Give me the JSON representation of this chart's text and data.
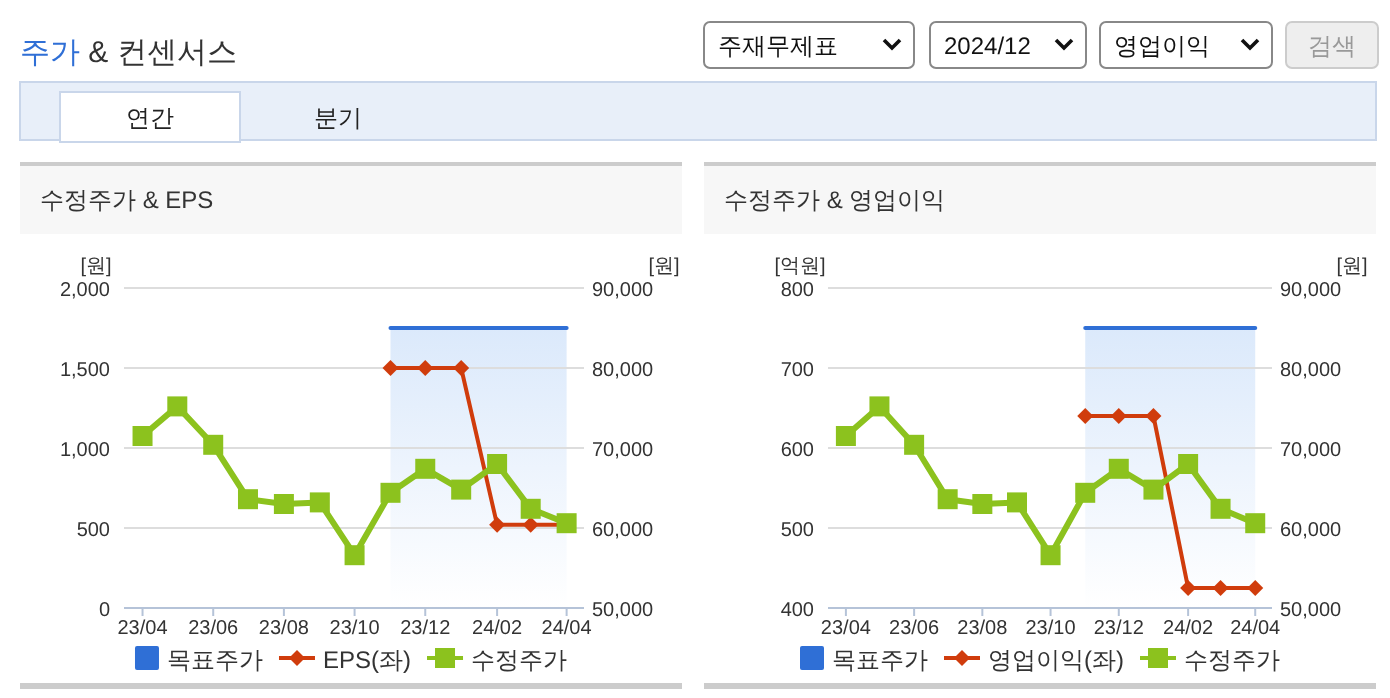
{
  "chart_data": [
    {
      "type": "other",
      "title": "주가 & 컨센서스",
      "annotations": [
        "주재무제표",
        "2024/12",
        "영업이익",
        "검색",
        "연간",
        "분기"
      ]
    },
    {
      "type": "line",
      "title": "수정주가 & EPS",
      "ylabel": "[원]",
      "y2label": "[원]",
      "x": [
        "2023-04",
        "2023-05",
        "2023-06",
        "2023-07",
        "2023-08",
        "2023-09",
        "2023-10",
        "2023-11",
        "2023-12",
        "2024-01",
        "2024-02",
        "2024-03",
        "2024-04"
      ],
      "xlim": [
        "2023-03-16",
        "2024-04-16"
      ],
      "xticks": [
        {
          "value": "2023-04",
          "label": "23/04"
        },
        {
          "value": "2023-06",
          "label": "23/06"
        },
        {
          "value": "2023-08",
          "label": "23/08"
        },
        {
          "value": "2023-10",
          "label": "23/10"
        },
        {
          "value": "2023-12",
          "label": "23/12"
        },
        {
          "value": "2024-02",
          "label": "24/02"
        },
        {
          "value": "2024-04",
          "label": "24/04"
        }
      ],
      "ylim": [
        0,
        2000
      ],
      "yticks": [
        0,
        500,
        {
          "value": 1000,
          "label": "1,000"
        },
        {
          "value": 1500,
          "label": "1,500"
        },
        {
          "value": 2000,
          "label": "2,000"
        }
      ],
      "y2lim": [
        50000,
        90000
      ],
      "y2ticks": [
        {
          "value": 50000,
          "label": "50,000"
        },
        {
          "value": 60000,
          "label": "60,000"
        },
        {
          "value": 70000,
          "label": "70,000"
        },
        {
          "value": 80000,
          "label": "80,000"
        },
        {
          "value": 90000,
          "label": "90,000"
        }
      ],
      "series": [
        {
          "name": "목표주가",
          "color": "#2f6fd6",
          "axis": "y2",
          "marker": "none",
          "values": [
            null,
            null,
            null,
            null,
            null,
            null,
            null,
            85000,
            85000,
            85000,
            85000,
            85000,
            85000
          ]
        },
        {
          "name": "EPS(좌)",
          "color": "#d03c0c",
          "marker": "diamond",
          "values": [
            null,
            null,
            null,
            null,
            null,
            null,
            null,
            1500,
            1500,
            1500,
            520,
            520,
            520
          ]
        },
        {
          "name": "수정주가",
          "color": "#8cc21e",
          "axis": "y2",
          "marker": "square",
          "values": [
            71500,
            75200,
            70400,
            63600,
            63000,
            63200,
            56600,
            64400,
            67400,
            64800,
            68000,
            62400,
            60600
          ]
        }
      ],
      "bands": [
        {
          "axis": "x",
          "from": "2023-11",
          "to": "2024-04",
          "color": "#dbe9fb"
        }
      ],
      "grid": "y",
      "legend": "bottom"
    },
    {
      "type": "line",
      "title": "수정주가 & 영업이익",
      "ylabel": "[억원]",
      "y2label": "[원]",
      "x": [
        "2023-04",
        "2023-05",
        "2023-06",
        "2023-07",
        "2023-08",
        "2023-09",
        "2023-10",
        "2023-11",
        "2023-12",
        "2024-01",
        "2024-02",
        "2024-03",
        "2024-04"
      ],
      "xlim": [
        "2023-03-16",
        "2024-04-16"
      ],
      "xticks": [
        {
          "value": "2023-04",
          "label": "23/04"
        },
        {
          "value": "2023-06",
          "label": "23/06"
        },
        {
          "value": "2023-08",
          "label": "23/08"
        },
        {
          "value": "2023-10",
          "label": "23/10"
        },
        {
          "value": "2023-12",
          "label": "23/12"
        },
        {
          "value": "2024-02",
          "label": "24/02"
        },
        {
          "value": "2024-04",
          "label": "24/04"
        }
      ],
      "ylim": [
        400,
        800
      ],
      "yticks": [
        400,
        500,
        600,
        700,
        800
      ],
      "y2lim": [
        50000,
        90000
      ],
      "y2ticks": [
        {
          "value": 50000,
          "label": "50,000"
        },
        {
          "value": 60000,
          "label": "60,000"
        },
        {
          "value": 70000,
          "label": "70,000"
        },
        {
          "value": 80000,
          "label": "80,000"
        },
        {
          "value": 90000,
          "label": "90,000"
        }
      ],
      "series": [
        {
          "name": "목표주가",
          "color": "#2f6fd6",
          "axis": "y2",
          "marker": "none",
          "values": [
            null,
            null,
            null,
            null,
            null,
            null,
            null,
            85000,
            85000,
            85000,
            85000,
            85000,
            85000
          ]
        },
        {
          "name": "영업이익(좌)",
          "color": "#d03c0c",
          "marker": "diamond",
          "values": [
            null,
            null,
            null,
            null,
            null,
            null,
            null,
            640,
            640,
            640,
            425,
            425,
            425
          ]
        },
        {
          "name": "수정주가",
          "color": "#8cc21e",
          "axis": "y2",
          "marker": "square",
          "values": [
            71500,
            75200,
            70400,
            63600,
            63000,
            63200,
            56600,
            64400,
            67400,
            64800,
            68000,
            62400,
            60600
          ]
        }
      ],
      "bands": [
        {
          "axis": "x",
          "from": "2023-11",
          "to": "2024-04",
          "color": "#dbe9fb"
        }
      ],
      "grid": "y",
      "legend": "bottom"
    }
  ]
}
